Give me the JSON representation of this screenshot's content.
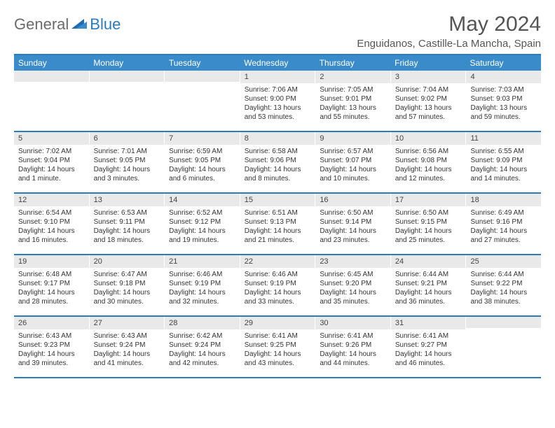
{
  "logo": {
    "part1": "General",
    "part2": "Blue",
    "accent_color": "#2b7bbf",
    "gray_color": "#6b6b6b"
  },
  "title": "May 2024",
  "location": "Enguidanos, Castille-La Mancha, Spain",
  "colors": {
    "header_bg": "#3a8bc9",
    "header_border": "#2b7bbf",
    "daynum_bg": "#e9e9ea",
    "text": "#333333",
    "bg": "#ffffff"
  },
  "day_names": [
    "Sunday",
    "Monday",
    "Tuesday",
    "Wednesday",
    "Thursday",
    "Friday",
    "Saturday"
  ],
  "weeks": [
    [
      {
        "n": "",
        "sr": "",
        "ss": "",
        "dl": ""
      },
      {
        "n": "",
        "sr": "",
        "ss": "",
        "dl": ""
      },
      {
        "n": "",
        "sr": "",
        "ss": "",
        "dl": ""
      },
      {
        "n": "1",
        "sr": "Sunrise: 7:06 AM",
        "ss": "Sunset: 9:00 PM",
        "dl": "Daylight: 13 hours and 53 minutes."
      },
      {
        "n": "2",
        "sr": "Sunrise: 7:05 AM",
        "ss": "Sunset: 9:01 PM",
        "dl": "Daylight: 13 hours and 55 minutes."
      },
      {
        "n": "3",
        "sr": "Sunrise: 7:04 AM",
        "ss": "Sunset: 9:02 PM",
        "dl": "Daylight: 13 hours and 57 minutes."
      },
      {
        "n": "4",
        "sr": "Sunrise: 7:03 AM",
        "ss": "Sunset: 9:03 PM",
        "dl": "Daylight: 13 hours and 59 minutes."
      }
    ],
    [
      {
        "n": "5",
        "sr": "Sunrise: 7:02 AM",
        "ss": "Sunset: 9:04 PM",
        "dl": "Daylight: 14 hours and 1 minute."
      },
      {
        "n": "6",
        "sr": "Sunrise: 7:01 AM",
        "ss": "Sunset: 9:05 PM",
        "dl": "Daylight: 14 hours and 3 minutes."
      },
      {
        "n": "7",
        "sr": "Sunrise: 6:59 AM",
        "ss": "Sunset: 9:05 PM",
        "dl": "Daylight: 14 hours and 6 minutes."
      },
      {
        "n": "8",
        "sr": "Sunrise: 6:58 AM",
        "ss": "Sunset: 9:06 PM",
        "dl": "Daylight: 14 hours and 8 minutes."
      },
      {
        "n": "9",
        "sr": "Sunrise: 6:57 AM",
        "ss": "Sunset: 9:07 PM",
        "dl": "Daylight: 14 hours and 10 minutes."
      },
      {
        "n": "10",
        "sr": "Sunrise: 6:56 AM",
        "ss": "Sunset: 9:08 PM",
        "dl": "Daylight: 14 hours and 12 minutes."
      },
      {
        "n": "11",
        "sr": "Sunrise: 6:55 AM",
        "ss": "Sunset: 9:09 PM",
        "dl": "Daylight: 14 hours and 14 minutes."
      }
    ],
    [
      {
        "n": "12",
        "sr": "Sunrise: 6:54 AM",
        "ss": "Sunset: 9:10 PM",
        "dl": "Daylight: 14 hours and 16 minutes."
      },
      {
        "n": "13",
        "sr": "Sunrise: 6:53 AM",
        "ss": "Sunset: 9:11 PM",
        "dl": "Daylight: 14 hours and 18 minutes."
      },
      {
        "n": "14",
        "sr": "Sunrise: 6:52 AM",
        "ss": "Sunset: 9:12 PM",
        "dl": "Daylight: 14 hours and 19 minutes."
      },
      {
        "n": "15",
        "sr": "Sunrise: 6:51 AM",
        "ss": "Sunset: 9:13 PM",
        "dl": "Daylight: 14 hours and 21 minutes."
      },
      {
        "n": "16",
        "sr": "Sunrise: 6:50 AM",
        "ss": "Sunset: 9:14 PM",
        "dl": "Daylight: 14 hours and 23 minutes."
      },
      {
        "n": "17",
        "sr": "Sunrise: 6:50 AM",
        "ss": "Sunset: 9:15 PM",
        "dl": "Daylight: 14 hours and 25 minutes."
      },
      {
        "n": "18",
        "sr": "Sunrise: 6:49 AM",
        "ss": "Sunset: 9:16 PM",
        "dl": "Daylight: 14 hours and 27 minutes."
      }
    ],
    [
      {
        "n": "19",
        "sr": "Sunrise: 6:48 AM",
        "ss": "Sunset: 9:17 PM",
        "dl": "Daylight: 14 hours and 28 minutes."
      },
      {
        "n": "20",
        "sr": "Sunrise: 6:47 AM",
        "ss": "Sunset: 9:18 PM",
        "dl": "Daylight: 14 hours and 30 minutes."
      },
      {
        "n": "21",
        "sr": "Sunrise: 6:46 AM",
        "ss": "Sunset: 9:19 PM",
        "dl": "Daylight: 14 hours and 32 minutes."
      },
      {
        "n": "22",
        "sr": "Sunrise: 6:46 AM",
        "ss": "Sunset: 9:19 PM",
        "dl": "Daylight: 14 hours and 33 minutes."
      },
      {
        "n": "23",
        "sr": "Sunrise: 6:45 AM",
        "ss": "Sunset: 9:20 PM",
        "dl": "Daylight: 14 hours and 35 minutes."
      },
      {
        "n": "24",
        "sr": "Sunrise: 6:44 AM",
        "ss": "Sunset: 9:21 PM",
        "dl": "Daylight: 14 hours and 36 minutes."
      },
      {
        "n": "25",
        "sr": "Sunrise: 6:44 AM",
        "ss": "Sunset: 9:22 PM",
        "dl": "Daylight: 14 hours and 38 minutes."
      }
    ],
    [
      {
        "n": "26",
        "sr": "Sunrise: 6:43 AM",
        "ss": "Sunset: 9:23 PM",
        "dl": "Daylight: 14 hours and 39 minutes."
      },
      {
        "n": "27",
        "sr": "Sunrise: 6:43 AM",
        "ss": "Sunset: 9:24 PM",
        "dl": "Daylight: 14 hours and 41 minutes."
      },
      {
        "n": "28",
        "sr": "Sunrise: 6:42 AM",
        "ss": "Sunset: 9:24 PM",
        "dl": "Daylight: 14 hours and 42 minutes."
      },
      {
        "n": "29",
        "sr": "Sunrise: 6:41 AM",
        "ss": "Sunset: 9:25 PM",
        "dl": "Daylight: 14 hours and 43 minutes."
      },
      {
        "n": "30",
        "sr": "Sunrise: 6:41 AM",
        "ss": "Sunset: 9:26 PM",
        "dl": "Daylight: 14 hours and 44 minutes."
      },
      {
        "n": "31",
        "sr": "Sunrise: 6:41 AM",
        "ss": "Sunset: 9:27 PM",
        "dl": "Daylight: 14 hours and 46 minutes."
      },
      {
        "n": "",
        "sr": "",
        "ss": "",
        "dl": ""
      }
    ]
  ]
}
